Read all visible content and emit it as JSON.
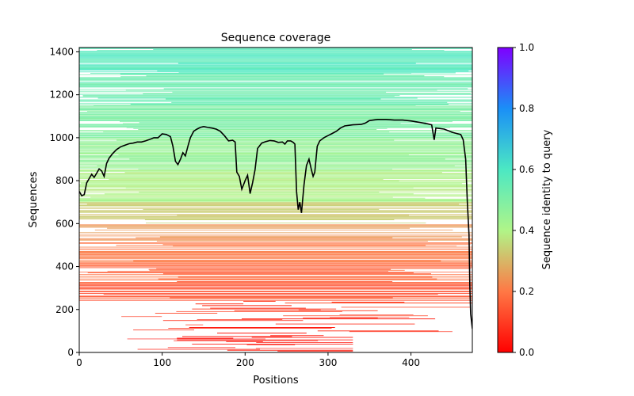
{
  "chart_data": {
    "type": "heatmap",
    "title": "Sequence coverage",
    "xlabel": "Positions",
    "ylabel": "Sequences",
    "xlim": [
      0,
      474
    ],
    "ylim": [
      0,
      1420
    ],
    "x_ticks": [
      0,
      100,
      200,
      300,
      400
    ],
    "y_ticks": [
      0,
      200,
      400,
      600,
      800,
      1000,
      1200,
      1400
    ],
    "colorbar": {
      "label": "Sequence identity to query",
      "range": [
        0,
        1
      ],
      "ticks": [
        0.0,
        0.2,
        0.4,
        0.6,
        0.8,
        1.0
      ],
      "tick_labels": [
        "0.0",
        "0.2",
        "0.4",
        "0.6",
        "0.8",
        "1.0"
      ],
      "colormap": "rainbow_r"
    },
    "coverage_line": {
      "name": "coverage",
      "color": "#000000",
      "points": [
        [
          0,
          750
        ],
        [
          3,
          730
        ],
        [
          6,
          735
        ],
        [
          9,
          790
        ],
        [
          12,
          810
        ],
        [
          15,
          830
        ],
        [
          18,
          815
        ],
        [
          21,
          835
        ],
        [
          24,
          855
        ],
        [
          27,
          845
        ],
        [
          30,
          820
        ],
        [
          33,
          880
        ],
        [
          36,
          905
        ],
        [
          40,
          925
        ],
        [
          45,
          945
        ],
        [
          50,
          958
        ],
        [
          55,
          965
        ],
        [
          60,
          972
        ],
        [
          65,
          975
        ],
        [
          70,
          980
        ],
        [
          75,
          980
        ],
        [
          80,
          985
        ],
        [
          85,
          992
        ],
        [
          90,
          1000
        ],
        [
          95,
          1000
        ],
        [
          100,
          1018
        ],
        [
          105,
          1015
        ],
        [
          110,
          1005
        ],
        [
          113,
          960
        ],
        [
          116,
          890
        ],
        [
          119,
          875
        ],
        [
          122,
          900
        ],
        [
          125,
          930
        ],
        [
          128,
          915
        ],
        [
          131,
          960
        ],
        [
          134,
          1000
        ],
        [
          138,
          1030
        ],
        [
          142,
          1040
        ],
        [
          146,
          1048
        ],
        [
          150,
          1052
        ],
        [
          155,
          1048
        ],
        [
          160,
          1045
        ],
        [
          165,
          1040
        ],
        [
          170,
          1030
        ],
        [
          175,
          1010
        ],
        [
          180,
          985
        ],
        [
          185,
          988
        ],
        [
          188,
          980
        ],
        [
          190,
          840
        ],
        [
          193,
          820
        ],
        [
          196,
          760
        ],
        [
          200,
          800
        ],
        [
          203,
          825
        ],
        [
          206,
          740
        ],
        [
          209,
          790
        ],
        [
          212,
          850
        ],
        [
          215,
          950
        ],
        [
          220,
          975
        ],
        [
          225,
          982
        ],
        [
          230,
          987
        ],
        [
          235,
          985
        ],
        [
          240,
          978
        ],
        [
          245,
          980
        ],
        [
          248,
          970
        ],
        [
          251,
          985
        ],
        [
          255,
          985
        ],
        [
          258,
          978
        ],
        [
          260,
          970
        ],
        [
          262,
          750
        ],
        [
          264,
          665
        ],
        [
          266,
          700
        ],
        [
          268,
          650
        ],
        [
          271,
          780
        ],
        [
          274,
          870
        ],
        [
          277,
          900
        ],
        [
          280,
          850
        ],
        [
          282,
          820
        ],
        [
          284,
          840
        ],
        [
          287,
          960
        ],
        [
          290,
          985
        ],
        [
          295,
          1000
        ],
        [
          300,
          1010
        ],
        [
          305,
          1020
        ],
        [
          310,
          1030
        ],
        [
          315,
          1045
        ],
        [
          320,
          1055
        ],
        [
          330,
          1060
        ],
        [
          340,
          1062
        ],
        [
          345,
          1068
        ],
        [
          350,
          1080
        ],
        [
          360,
          1085
        ],
        [
          370,
          1085
        ],
        [
          380,
          1082
        ],
        [
          390,
          1082
        ],
        [
          400,
          1078
        ],
        [
          410,
          1072
        ],
        [
          420,
          1065
        ],
        [
          425,
          1060
        ],
        [
          428,
          990
        ],
        [
          430,
          1045
        ],
        [
          440,
          1040
        ],
        [
          450,
          1025
        ],
        [
          455,
          1020
        ],
        [
          460,
          1015
        ],
        [
          463,
          990
        ],
        [
          466,
          900
        ],
        [
          468,
          700
        ],
        [
          470,
          550
        ],
        [
          471,
          300
        ],
        [
          472,
          180
        ],
        [
          474,
          110
        ]
      ]
    },
    "row_bands": [
      {
        "from": 0,
        "to": 90,
        "identity": 0.04,
        "density": 0.55,
        "x_range": [
          30,
          330
        ]
      },
      {
        "from": 90,
        "to": 160,
        "identity": 0.07,
        "density": 0.6,
        "x_range": [
          40,
          450
        ]
      },
      {
        "from": 160,
        "to": 240,
        "identity": 0.1,
        "density": 0.65,
        "x_range": [
          20,
          474
        ]
      },
      {
        "from": 240,
        "to": 320,
        "identity": 0.14,
        "density": 0.75,
        "x_range": [
          0,
          474
        ]
      },
      {
        "from": 320,
        "to": 420,
        "identity": 0.17,
        "density": 0.8,
        "x_range": [
          0,
          474
        ]
      },
      {
        "from": 420,
        "to": 520,
        "identity": 0.2,
        "density": 0.82,
        "x_range": [
          0,
          474
        ]
      },
      {
        "from": 520,
        "to": 600,
        "identity": 0.25,
        "density": 0.85,
        "x_range": [
          0,
          474
        ]
      },
      {
        "from": 600,
        "to": 700,
        "identity": 0.33,
        "density": 0.9,
        "x_range": [
          0,
          474
        ]
      },
      {
        "from": 700,
        "to": 850,
        "identity": 0.4,
        "density": 0.93,
        "x_range": [
          0,
          474
        ]
      },
      {
        "from": 850,
        "to": 1000,
        "identity": 0.45,
        "density": 0.96,
        "x_range": [
          0,
          474
        ]
      },
      {
        "from": 1000,
        "to": 1150,
        "identity": 0.5,
        "density": 0.97,
        "x_range": [
          0,
          474
        ]
      },
      {
        "from": 1150,
        "to": 1300,
        "identity": 0.54,
        "density": 0.97,
        "x_range": [
          0,
          474
        ]
      },
      {
        "from": 1300,
        "to": 1420,
        "identity": 0.58,
        "density": 0.98,
        "x_range": [
          0,
          474
        ]
      }
    ]
  }
}
